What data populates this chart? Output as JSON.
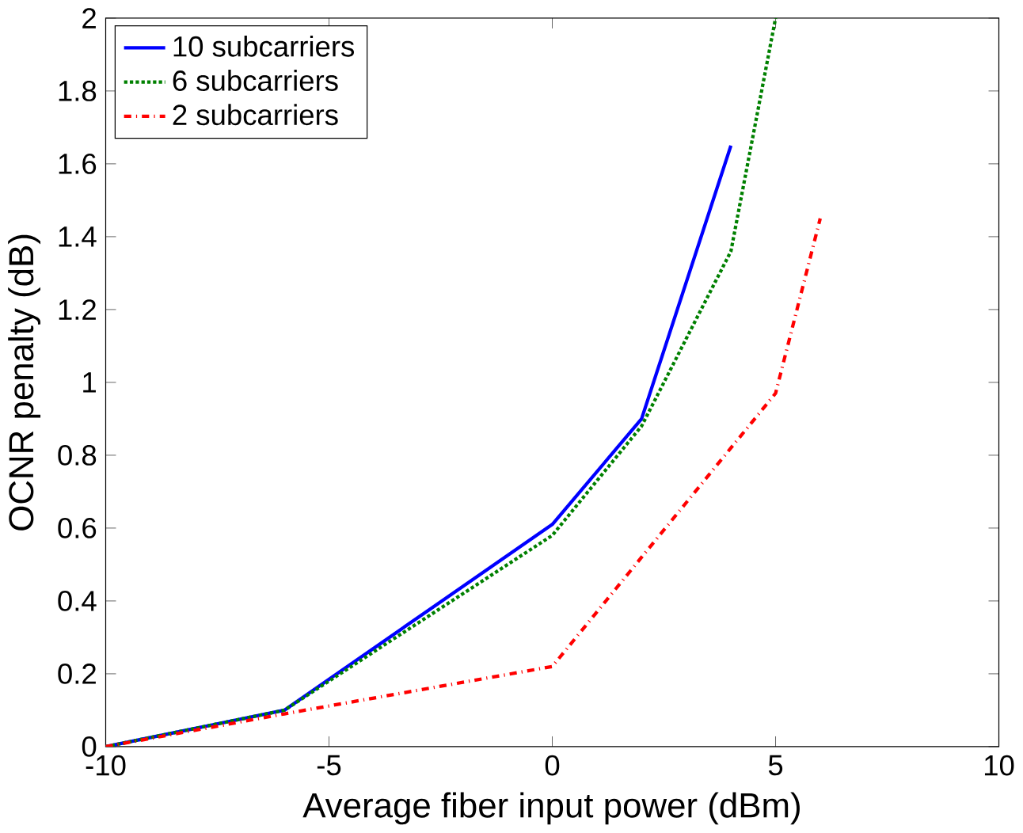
{
  "chart_data": {
    "type": "line",
    "xlabel": "Average fiber input power (dBm)",
    "ylabel": "OCNR penalty (dB)",
    "xlim": [
      -10,
      10
    ],
    "ylim": [
      0,
      2
    ],
    "xticks": [
      -10,
      -5,
      0,
      5,
      10
    ],
    "yticks": [
      0,
      0.2,
      0.4,
      0.6,
      0.8,
      1,
      1.2,
      1.4,
      1.6,
      1.8,
      2
    ],
    "legend": "top left",
    "grid": false,
    "series": [
      {
        "name": "10 subcarriers",
        "color": "#0000ff",
        "line_style": "solid",
        "x": [
          -10,
          -6,
          0,
          2,
          4
        ],
        "values": [
          0,
          0.1,
          0.61,
          0.9,
          1.65
        ]
      },
      {
        "name": "6 subcarriers",
        "color": "#008000",
        "line_style": "dotted",
        "x": [
          -10,
          -6,
          0,
          2,
          4,
          5
        ],
        "values": [
          0,
          0.1,
          0.58,
          0.88,
          1.36,
          2.0
        ]
      },
      {
        "name": "2 subcarriers",
        "color": "#ff0000",
        "line_style": "dashdotted",
        "x": [
          -10,
          -6,
          0,
          2,
          5,
          6
        ],
        "values": [
          0,
          0.09,
          0.22,
          0.52,
          0.97,
          1.45
        ]
      }
    ]
  }
}
